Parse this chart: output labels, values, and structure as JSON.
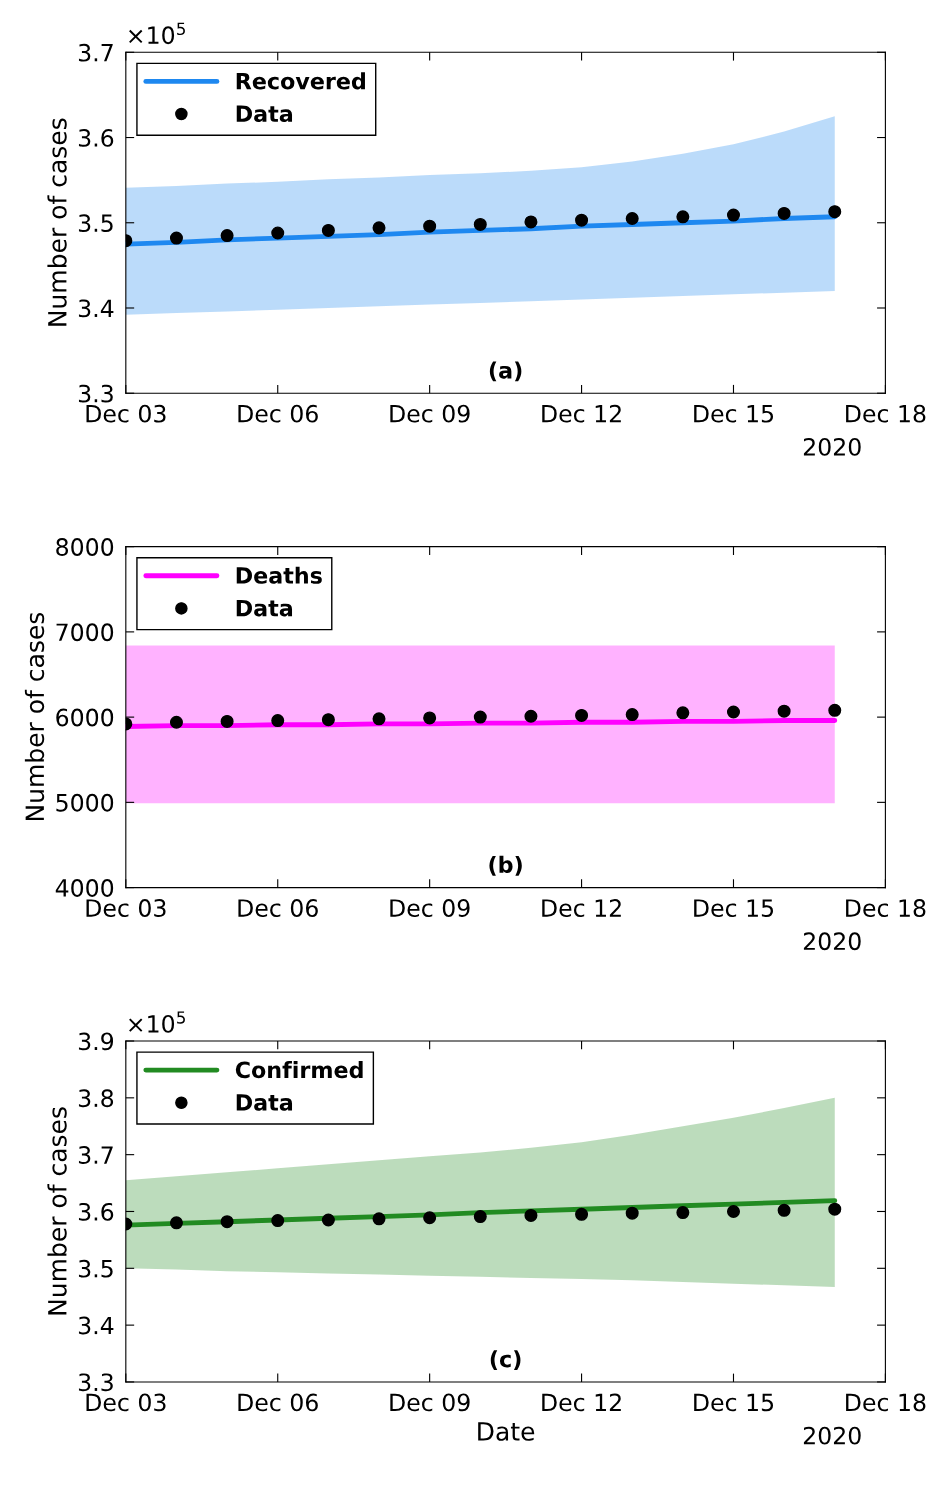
{
  "chart_data": [
    {
      "type": "line",
      "ylabel": "Number of cases",
      "annotations": [
        "×10$^{5}$",
        "(a)",
        "2020"
      ],
      "legend": "top left",
      "x": [
        "2020-12-03",
        "2020-12-04",
        "2020-12-05",
        "2020-12-06",
        "2020-12-07",
        "2020-12-08",
        "2020-12-09",
        "2020-12-10",
        "2020-12-11",
        "2020-12-12",
        "2020-12-13",
        "2020-12-14",
        "2020-12-15",
        "2020-12-16",
        "2020-12-17"
      ],
      "xlim": [
        "2020-12-03",
        "2020-12-18"
      ],
      "xticks": [
        {
          "value": "2020-12-03",
          "label": "Dec 03"
        },
        {
          "value": "2020-12-06",
          "label": "Dec 06"
        },
        {
          "value": "2020-12-09",
          "label": "Dec 09"
        },
        {
          "value": "2020-12-12",
          "label": "Dec 12"
        },
        {
          "value": "2020-12-15",
          "label": "Dec 15"
        },
        {
          "value": "2020-12-18",
          "label": "Dec 18"
        }
      ],
      "ylim": [
        3.3,
        3.7
      ],
      "yticks": [
        3.3,
        3.4,
        3.5,
        3.6,
        3.7
      ],
      "series": [
        {
          "name": "Recovered",
          "color": "#1e88f0",
          "values": [
            3.475,
            3.477,
            3.48,
            3.482,
            3.484,
            3.486,
            3.489,
            3.491,
            3.493,
            3.496,
            3.498,
            3.5,
            3.502,
            3.505,
            3.507
          ],
          "lower": [
            3.392,
            3.394,
            3.396,
            3.398,
            3.4,
            3.402,
            3.404,
            3.406,
            3.408,
            3.41,
            3.412,
            3.414,
            3.416,
            3.418,
            3.42
          ],
          "upper": [
            3.541,
            3.543,
            3.546,
            3.548,
            3.551,
            3.553,
            3.556,
            3.558,
            3.561,
            3.565,
            3.572,
            3.581,
            3.592,
            3.607,
            3.625
          ]
        },
        {
          "name": "Data",
          "type": "scatter",
          "marker": "circle",
          "color": "#000000",
          "values": [
            3.479,
            3.482,
            3.485,
            3.488,
            3.491,
            3.494,
            3.496,
            3.498,
            3.501,
            3.503,
            3.505,
            3.507,
            3.509,
            3.511,
            3.513
          ]
        }
      ]
    },
    {
      "type": "line",
      "ylabel": "Number of cases",
      "annotations": [
        "(b)",
        "2020"
      ],
      "legend": "top left",
      "x": [
        "2020-12-03",
        "2020-12-04",
        "2020-12-05",
        "2020-12-06",
        "2020-12-07",
        "2020-12-08",
        "2020-12-09",
        "2020-12-10",
        "2020-12-11",
        "2020-12-12",
        "2020-12-13",
        "2020-12-14",
        "2020-12-15",
        "2020-12-16",
        "2020-12-17"
      ],
      "xlim": [
        "2020-12-03",
        "2020-12-18"
      ],
      "xticks": [
        {
          "value": "2020-12-03",
          "label": "Dec 03"
        },
        {
          "value": "2020-12-06",
          "label": "Dec 06"
        },
        {
          "value": "2020-12-09",
          "label": "Dec 09"
        },
        {
          "value": "2020-12-12",
          "label": "Dec 12"
        },
        {
          "value": "2020-12-15",
          "label": "Dec 15"
        },
        {
          "value": "2020-12-18",
          "label": "Dec 18"
        }
      ],
      "ylim": [
        4000,
        8000
      ],
      "yticks": [
        4000,
        5000,
        6000,
        7000,
        8000
      ],
      "series": [
        {
          "name": "Deaths",
          "color": "#ff00ff",
          "values": [
            5890,
            5900,
            5900,
            5910,
            5910,
            5920,
            5920,
            5930,
            5930,
            5940,
            5940,
            5950,
            5950,
            5960,
            5960
          ],
          "lower": [
            4990,
            4990,
            4990,
            4990,
            4990,
            4990,
            4990,
            4990,
            4990,
            4990,
            4990,
            4990,
            4990,
            4990,
            4990
          ],
          "upper": [
            6840,
            6840,
            6840,
            6840,
            6840,
            6840,
            6840,
            6840,
            6840,
            6840,
            6840,
            6840,
            6840,
            6840,
            6840
          ]
        },
        {
          "name": "Data",
          "type": "scatter",
          "marker": "circle",
          "color": "#000000",
          "values": [
            5920,
            5940,
            5950,
            5960,
            5970,
            5980,
            5990,
            6000,
            6010,
            6020,
            6030,
            6050,
            6060,
            6070,
            6080
          ]
        }
      ]
    },
    {
      "type": "line",
      "xlabel": "Date",
      "ylabel": "Number of cases",
      "annotations": [
        "×10$^{5}$",
        "(c)",
        "2020"
      ],
      "legend": "top left",
      "x": [
        "2020-12-03",
        "2020-12-04",
        "2020-12-05",
        "2020-12-06",
        "2020-12-07",
        "2020-12-08",
        "2020-12-09",
        "2020-12-10",
        "2020-12-11",
        "2020-12-12",
        "2020-12-13",
        "2020-12-14",
        "2020-12-15",
        "2020-12-16",
        "2020-12-17"
      ],
      "xlim": [
        "2020-12-03",
        "2020-12-18"
      ],
      "xticks": [
        {
          "value": "2020-12-03",
          "label": "Dec 03"
        },
        {
          "value": "2020-12-06",
          "label": "Dec 06"
        },
        {
          "value": "2020-12-09",
          "label": "Dec 09"
        },
        {
          "value": "2020-12-12",
          "label": "Dec 12"
        },
        {
          "value": "2020-12-15",
          "label": "Dec 15"
        },
        {
          "value": "2020-12-18",
          "label": "Dec 18"
        }
      ],
      "ylim": [
        3.3,
        3.9
      ],
      "yticks": [
        3.3,
        3.4,
        3.5,
        3.6,
        3.7,
        3.8,
        3.9
      ],
      "series": [
        {
          "name": "Confirmed",
          "color": "#228b22",
          "values": [
            3.576,
            3.579,
            3.582,
            3.585,
            3.588,
            3.591,
            3.594,
            3.598,
            3.601,
            3.604,
            3.607,
            3.61,
            3.613,
            3.616,
            3.619
          ],
          "lower": [
            3.5,
            3.498,
            3.495,
            3.493,
            3.491,
            3.489,
            3.487,
            3.485,
            3.483,
            3.481,
            3.479,
            3.476,
            3.473,
            3.47,
            3.467
          ],
          "upper": [
            3.655,
            3.662,
            3.669,
            3.676,
            3.683,
            3.69,
            3.697,
            3.704,
            3.712,
            3.722,
            3.735,
            3.75,
            3.765,
            3.782,
            3.8
          ]
        },
        {
          "name": "Data",
          "type": "scatter",
          "marker": "circle",
          "color": "#000000",
          "values": [
            3.578,
            3.58,
            3.582,
            3.584,
            3.585,
            3.587,
            3.589,
            3.591,
            3.593,
            3.595,
            3.597,
            3.598,
            3.6,
            3.602,
            3.604
          ]
        }
      ]
    }
  ]
}
